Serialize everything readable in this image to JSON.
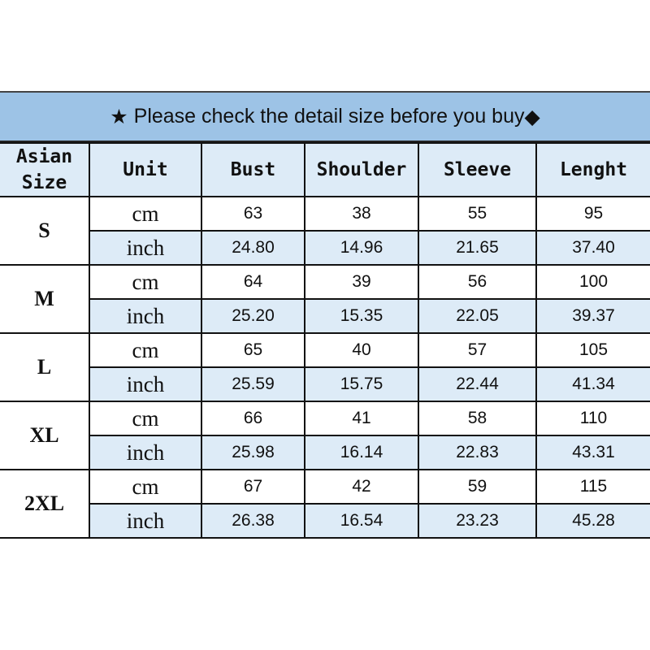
{
  "title": {
    "star": "★",
    "text": "Please check the detail size before you buy",
    "diamond": "◆"
  },
  "headers": [
    "Asian Size",
    "Unit",
    "Bust",
    "Shoulder",
    "Sleeve",
    "Lenght"
  ],
  "colors": {
    "title_bg": "#9dc3e6",
    "header_bg": "#ddebf7"
  },
  "sizes": [
    {
      "size": "S",
      "cm": {
        "unit": "cm",
        "values": [
          "63",
          "38",
          "55",
          "95"
        ]
      },
      "inch": {
        "unit": "inch",
        "values": [
          "24.80",
          "14.96",
          "21.65",
          "37.40"
        ]
      }
    },
    {
      "size": "M",
      "cm": {
        "unit": "cm",
        "values": [
          "64",
          "39",
          "56",
          "100"
        ]
      },
      "inch": {
        "unit": "inch",
        "values": [
          "25.20",
          "15.35",
          "22.05",
          "39.37"
        ]
      }
    },
    {
      "size": "L",
      "cm": {
        "unit": "cm",
        "values": [
          "65",
          "40",
          "57",
          "105"
        ]
      },
      "inch": {
        "unit": "inch",
        "values": [
          "25.59",
          "15.75",
          "22.44",
          "41.34"
        ]
      }
    },
    {
      "size": "XL",
      "cm": {
        "unit": "cm",
        "values": [
          "66",
          "41",
          "58",
          "110"
        ]
      },
      "inch": {
        "unit": "inch",
        "values": [
          "25.98",
          "16.14",
          "22.83",
          "43.31"
        ]
      }
    },
    {
      "size": "2XL",
      "cm": {
        "unit": "cm",
        "values": [
          "67",
          "42",
          "59",
          "115"
        ]
      },
      "inch": {
        "unit": "inch",
        "values": [
          "26.38",
          "16.54",
          "23.23",
          "45.28"
        ]
      }
    }
  ]
}
